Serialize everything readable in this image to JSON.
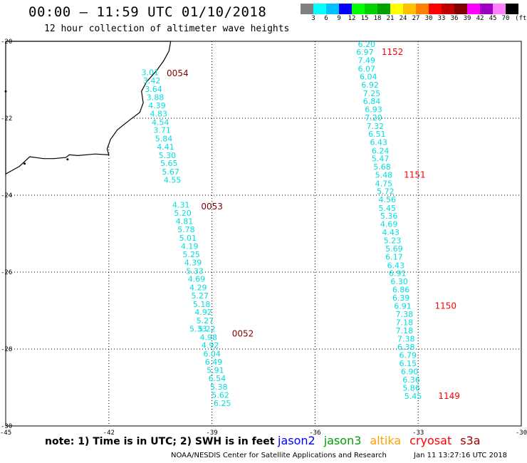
{
  "header": {
    "title": "00:00 – 11:59 UTC 01/10/2018",
    "subtitle": "12 hour collection of altimeter wave heights"
  },
  "colorbar": {
    "colors": [
      "#808080",
      "#00ffff",
      "#00c0ff",
      "#0000ff",
      "#00ff00",
      "#00d200",
      "#00a000",
      "#ffff00",
      "#ffc000",
      "#ff8000",
      "#ff0000",
      "#c00000",
      "#800000",
      "#ff00ff",
      "#a000c0",
      "#ff80ff",
      "#000000"
    ],
    "labels": [
      "3",
      "6",
      "9",
      "12",
      "15",
      "18",
      "21",
      "24",
      "27",
      "30",
      "33",
      "36",
      "39",
      "42",
      "45",
      "70"
    ],
    "unit": "(ft)"
  },
  "map": {
    "lon_range": [
      -45,
      -30
    ],
    "lat_range": [
      -30,
      -20
    ],
    "lon_ticks": [
      -45,
      -42,
      -39,
      -36,
      -33,
      -30
    ],
    "lat_ticks": [
      -20,
      -22,
      -24,
      -26,
      -28,
      -30
    ],
    "lon_tick_labels": [
      "-45",
      "-42",
      "-39",
      "-36",
      "-33",
      "-30"
    ],
    "lat_tick_labels": [
      "-20",
      "-22",
      "-24",
      "-26",
      "-28",
      "-30"
    ],
    "land_color": "#000000"
  },
  "passes": [
    {
      "name": "west-pass",
      "color": "#00dede",
      "points": [
        {
          "lon": -40.8,
          "lat": -20.81,
          "swh": "3.01"
        },
        {
          "lon": -40.75,
          "lat": -21.02,
          "swh": "3.42"
        },
        {
          "lon": -40.7,
          "lat": -21.24,
          "swh": "3.64"
        },
        {
          "lon": -40.65,
          "lat": -21.45,
          "swh": "3.88"
        },
        {
          "lon": -40.6,
          "lat": -21.67,
          "swh": "4.39"
        },
        {
          "lon": -40.55,
          "lat": -21.88,
          "swh": "4.83"
        },
        {
          "lon": -40.5,
          "lat": -22.1,
          "swh": "4.54"
        },
        {
          "lon": -40.45,
          "lat": -22.31,
          "swh": "3.71"
        },
        {
          "lon": -40.4,
          "lat": -22.53,
          "swh": "5.84"
        },
        {
          "lon": -40.35,
          "lat": -22.74,
          "swh": "4.41"
        },
        {
          "lon": -40.3,
          "lat": -22.96,
          "swh": "5.30"
        },
        {
          "lon": -40.25,
          "lat": -23.17,
          "swh": "5.65"
        },
        {
          "lon": -40.2,
          "lat": -23.39,
          "swh": "5.67"
        },
        {
          "lon": -40.15,
          "lat": -23.6,
          "swh": "4.55"
        },
        {
          "lon": -39.9,
          "lat": -24.25,
          "swh": "4.31"
        },
        {
          "lon": -39.85,
          "lat": -24.46,
          "swh": "5.20"
        },
        {
          "lon": -39.8,
          "lat": -24.68,
          "swh": "4.81"
        },
        {
          "lon": -39.75,
          "lat": -24.89,
          "swh": "5.78"
        },
        {
          "lon": -39.7,
          "lat": -25.11,
          "swh": "5.01"
        },
        {
          "lon": -39.65,
          "lat": -25.32,
          "swh": "4.19"
        },
        {
          "lon": -39.6,
          "lat": -25.54,
          "swh": "5.25"
        },
        {
          "lon": -39.55,
          "lat": -25.75,
          "swh": "4.39"
        },
        {
          "lon": -39.5,
          "lat": -25.97,
          "swh": "5.33"
        },
        {
          "lon": -39.45,
          "lat": -26.18,
          "swh": "4.69"
        },
        {
          "lon": -39.4,
          "lat": -26.4,
          "swh": "4.29"
        },
        {
          "lon": -39.35,
          "lat": -26.61,
          "swh": "5.27"
        },
        {
          "lon": -39.3,
          "lat": -26.83,
          "swh": "5.18"
        },
        {
          "lon": -39.25,
          "lat": -27.04,
          "swh": "4.92"
        },
        {
          "lon": -39.2,
          "lat": -27.26,
          "swh": "5.27"
        },
        {
          "lon": -39.15,
          "lat": -27.47,
          "swh": "5.22"
        },
        {
          "lon": -39.1,
          "lat": -27.69,
          "swh": "4.98"
        },
        {
          "lon": -39.05,
          "lat": -27.9,
          "swh": "4.92"
        },
        {
          "lon": -39.0,
          "lat": -28.12,
          "swh": "6.04"
        },
        {
          "lon": -38.95,
          "lat": -28.33,
          "swh": "6.49"
        },
        {
          "lon": -38.9,
          "lat": -28.55,
          "swh": "5.91"
        },
        {
          "lon": -38.85,
          "lat": -28.76,
          "swh": "6.54"
        },
        {
          "lon": -38.8,
          "lat": -28.98,
          "swh": "5.38"
        },
        {
          "lon": -38.75,
          "lat": -29.19,
          "swh": "5.62"
        },
        {
          "lon": -38.7,
          "lat": -29.41,
          "swh": "6.25"
        },
        {
          "lon": -39.4,
          "lat": -27.47,
          "swh": "5.33"
        }
      ],
      "orbits": [
        {
          "label": "0054",
          "lon": -40.0,
          "lat": -20.83,
          "color": "#800000"
        },
        {
          "label": "0053",
          "lon": -39.0,
          "lat": -24.3,
          "color": "#800000"
        },
        {
          "label": "0052",
          "lon": -38.1,
          "lat": -27.6,
          "color": "#800000"
        }
      ]
    },
    {
      "name": "east-pass",
      "color": "#00dede",
      "points": [
        {
          "lon": -34.5,
          "lat": -20.07,
          "swh": "6.20"
        },
        {
          "lon": -34.55,
          "lat": -20.28,
          "swh": "6.97"
        },
        {
          "lon": -34.5,
          "lat": -20.49,
          "swh": "7.49"
        },
        {
          "lon": -34.5,
          "lat": -20.71,
          "swh": "6.07"
        },
        {
          "lon": -34.45,
          "lat": -20.92,
          "swh": "6.04"
        },
        {
          "lon": -34.4,
          "lat": -21.13,
          "swh": "6.92"
        },
        {
          "lon": -34.35,
          "lat": -21.35,
          "swh": "7.25"
        },
        {
          "lon": -34.35,
          "lat": -21.56,
          "swh": "6.84"
        },
        {
          "lon": -34.3,
          "lat": -21.77,
          "swh": "6.93"
        },
        {
          "lon": -34.3,
          "lat": -21.98,
          "swh": "7.20"
        },
        {
          "lon": -34.25,
          "lat": -22.2,
          "swh": "7.32"
        },
        {
          "lon": -34.2,
          "lat": -22.41,
          "swh": "6.51"
        },
        {
          "lon": -34.15,
          "lat": -22.62,
          "swh": "6.43"
        },
        {
          "lon": -34.1,
          "lat": -22.84,
          "swh": "6.24"
        },
        {
          "lon": -34.1,
          "lat": -23.05,
          "swh": "5.47"
        },
        {
          "lon": -34.05,
          "lat": -23.26,
          "swh": "5.68"
        },
        {
          "lon": -34.0,
          "lat": -23.47,
          "swh": "5.48"
        },
        {
          "lon": -34.0,
          "lat": -23.69,
          "swh": "4.75"
        },
        {
          "lon": -33.95,
          "lat": -23.9,
          "swh": "5.72"
        },
        {
          "lon": -33.9,
          "lat": -24.11,
          "swh": "4.56"
        },
        {
          "lon": -33.9,
          "lat": -24.33,
          "swh": "5.45"
        },
        {
          "lon": -33.85,
          "lat": -24.54,
          "swh": "5.36"
        },
        {
          "lon": -33.85,
          "lat": -24.75,
          "swh": "4.69"
        },
        {
          "lon": -33.8,
          "lat": -24.96,
          "swh": "4.43"
        },
        {
          "lon": -33.75,
          "lat": -25.18,
          "swh": "5.23"
        },
        {
          "lon": -33.7,
          "lat": -25.39,
          "swh": "5.69"
        },
        {
          "lon": -33.7,
          "lat": -25.6,
          "swh": "6.17"
        },
        {
          "lon": -33.65,
          "lat": -25.82,
          "swh": "6.43"
        },
        {
          "lon": -33.6,
          "lat": -26.03,
          "swh": "6.91"
        },
        {
          "lon": -33.55,
          "lat": -26.24,
          "swh": "6.30"
        },
        {
          "lon": -33.5,
          "lat": -26.45,
          "swh": "6.86"
        },
        {
          "lon": -33.5,
          "lat": -26.67,
          "swh": "6.39"
        },
        {
          "lon": -33.45,
          "lat": -26.88,
          "swh": "6.91"
        },
        {
          "lon": -33.4,
          "lat": -27.09,
          "swh": "7.38"
        },
        {
          "lon": -33.4,
          "lat": -27.31,
          "swh": "7.18"
        },
        {
          "lon": -33.4,
          "lat": -27.52,
          "swh": "7.18"
        },
        {
          "lon": -33.35,
          "lat": -27.73,
          "swh": "7.38"
        },
        {
          "lon": -33.35,
          "lat": -27.94,
          "swh": "6.38"
        },
        {
          "lon": -33.3,
          "lat": -28.16,
          "swh": "6.79"
        },
        {
          "lon": -33.3,
          "lat": -28.37,
          "swh": "6.15"
        },
        {
          "lon": -33.25,
          "lat": -28.58,
          "swh": "6.90"
        },
        {
          "lon": -33.2,
          "lat": -28.8,
          "swh": "6.36"
        },
        {
          "lon": -33.2,
          "lat": -29.01,
          "swh": "5.86"
        },
        {
          "lon": -33.15,
          "lat": -29.22,
          "swh": "5.45"
        }
      ],
      "orbits": [
        {
          "label": "1152",
          "lon": -33.75,
          "lat": -20.28,
          "color": "#ff0000"
        },
        {
          "label": "1151",
          "lon": -33.1,
          "lat": -23.47,
          "color": "#ff0000"
        },
        {
          "label": "1150",
          "lon": -32.2,
          "lat": -26.88,
          "color": "#ff0000"
        },
        {
          "label": "1149",
          "lon": -32.1,
          "lat": -29.22,
          "color": "#ff0000"
        }
      ]
    }
  ],
  "note": "note: 1) Time is in UTC; 2) SWH is in feet",
  "satellites": [
    {
      "name": "jason2",
      "color": "#0000ff"
    },
    {
      "name": "jason3",
      "color": "#00a000"
    },
    {
      "name": "altika",
      "color": "#ffa000"
    },
    {
      "name": "cryosat",
      "color": "#ff0000"
    },
    {
      "name": "s3a",
      "color": "#a00000"
    }
  ],
  "footer": {
    "credit": "NOAA/NESDIS Center for Satellite Applications and Research",
    "timestamp": "Jan 11 13:27:16 UTC 2018"
  }
}
